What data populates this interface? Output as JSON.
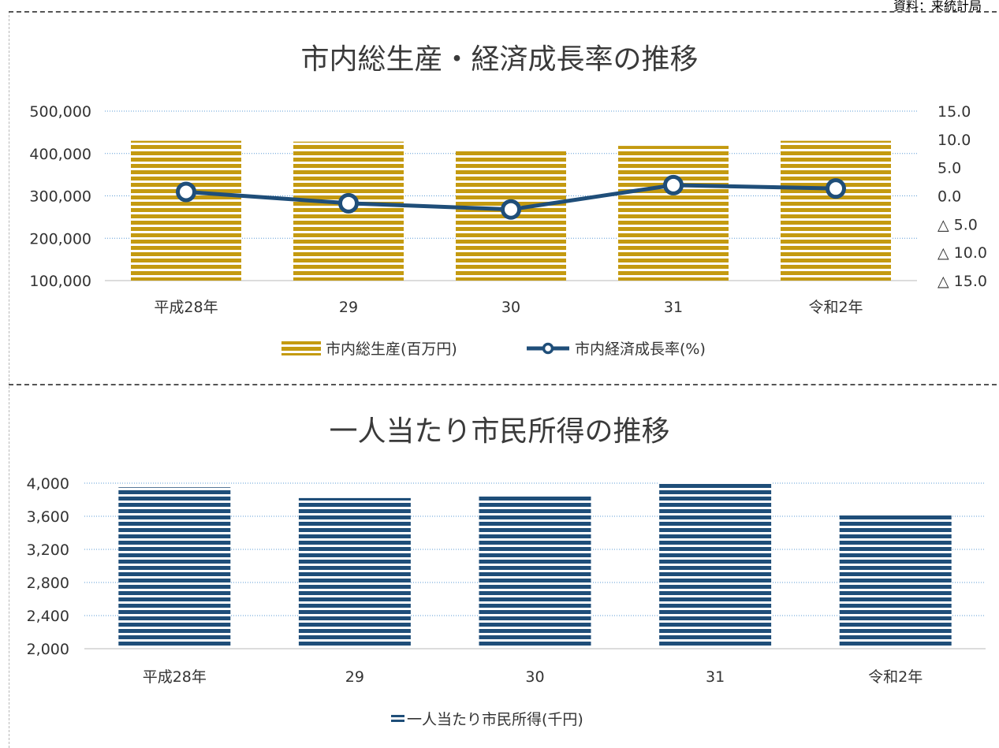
{
  "source_note": "資料：来統計局",
  "chart_data": [
    {
      "type": "bar",
      "title": "市内総生産・経済成長率の推移",
      "categories": [
        "平成28年",
        "29",
        "30",
        "31",
        "令和2年"
      ],
      "ylim": [
        100000,
        500000
      ],
      "y_ticks": [
        "100,000",
        "200,000",
        "300,000",
        "400,000",
        "500,000"
      ],
      "y2lim": [
        -15,
        15
      ],
      "y2_ticks": [
        "△ 15.0",
        "△ 10.0",
        "△ 5.0",
        "0.0",
        "5.0",
        "10.0",
        "15.0"
      ],
      "grid": true,
      "legend_position": "bottom",
      "series": [
        {
          "name": "市内総生産(百万円)",
          "type": "bar",
          "axis": "left",
          "color": "#c49a10",
          "values": [
            430000,
            428000,
            410000,
            418000,
            430000
          ]
        },
        {
          "name": "市内経済成長率(%)",
          "type": "line",
          "axis": "right",
          "color": "#1f4e79",
          "values": [
            0.7,
            -1.3,
            -2.4,
            1.9,
            1.3
          ]
        }
      ]
    },
    {
      "type": "bar",
      "title": "一人当たり市民所得の推移",
      "categories": [
        "平成28年",
        "29",
        "30",
        "31",
        "令和2年"
      ],
      "ylim": [
        2000,
        4000
      ],
      "y_ticks": [
        "2,000",
        "2,400",
        "2,800",
        "3,200",
        "3,600",
        "4,000"
      ],
      "grid": true,
      "legend_position": "bottom",
      "series": [
        {
          "name": "一人当たり市民所得(千円)",
          "type": "bar",
          "axis": "left",
          "color": "#1f4e79",
          "values": [
            3950,
            3820,
            3840,
            4010,
            3620
          ]
        }
      ]
    }
  ]
}
